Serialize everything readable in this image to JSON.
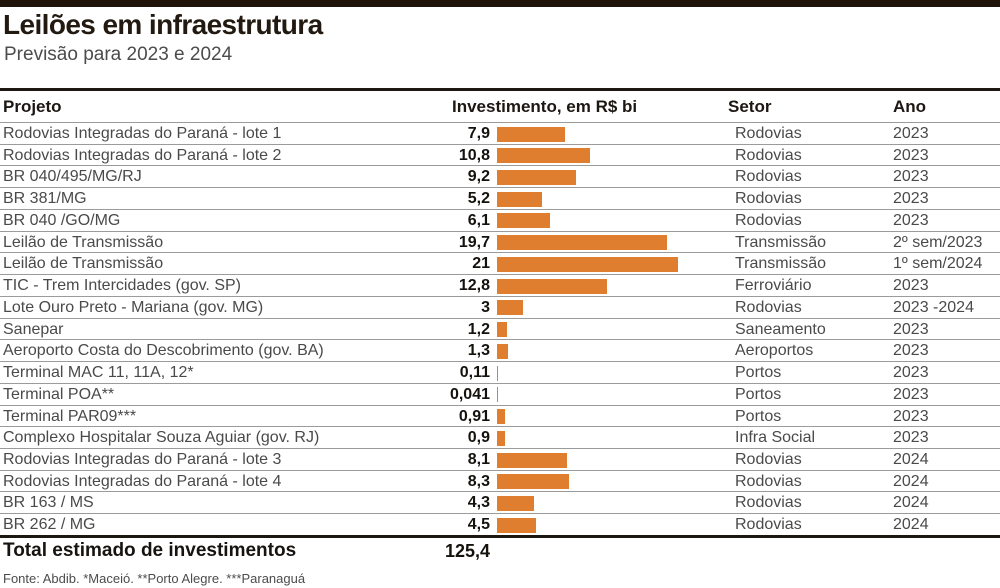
{
  "header": {
    "title": "Leilões em infraestrutura",
    "subtitle": "Previsão para 2023 e 2024"
  },
  "table": {
    "columns": {
      "project": "Projeto",
      "investment": "Investimento, em R$ bi",
      "sector": "Setor",
      "year": "Ano"
    },
    "rows": [
      {
        "project": "Rodovias Integradas do Paraná - lote 1",
        "value_label": "7,9",
        "value": 7.9,
        "sector": "Rodovias",
        "year": "2023"
      },
      {
        "project": "Rodovias Integradas do Paraná - lote 2",
        "value_label": "10,8",
        "value": 10.8,
        "sector": "Rodovias",
        "year": "2023"
      },
      {
        "project": "BR 040/495/MG/RJ",
        "value_label": "9,2",
        "value": 9.2,
        "sector": "Rodovias",
        "year": "2023"
      },
      {
        "project": "BR 381/MG",
        "value_label": "5,2",
        "value": 5.2,
        "sector": "Rodovias",
        "year": "2023"
      },
      {
        "project": "BR 040 /GO/MG",
        "value_label": "6,1",
        "value": 6.1,
        "sector": "Rodovias",
        "year": "2023"
      },
      {
        "project": "Leilão de Transmissão",
        "value_label": "19,7",
        "value": 19.7,
        "sector": "Transmissão",
        "year": "2º sem/2023"
      },
      {
        "project": "Leilão de Transmissão",
        "value_label": "21",
        "value": 21,
        "sector": "Transmissão",
        "year": "1º sem/2024"
      },
      {
        "project": "TIC - Trem Intercidades (gov. SP)",
        "value_label": "12,8",
        "value": 12.8,
        "sector": "Ferroviário",
        "year": "2023"
      },
      {
        "project": "Lote Ouro Preto - Mariana (gov. MG)",
        "value_label": "3",
        "value": 3,
        "sector": "Rodovias",
        "year": "2023 -2024"
      },
      {
        "project": "Sanepar",
        "value_label": "1,2",
        "value": 1.2,
        "sector": "Saneamento",
        "year": "2023"
      },
      {
        "project": "Aeroporto Costa do Descobrimento (gov. BA)",
        "value_label": "1,3",
        "value": 1.3,
        "sector": "Aeroportos",
        "year": "2023"
      },
      {
        "project": "Terminal MAC 11, 11A, 12*",
        "value_label": "0,11",
        "value": 0.11,
        "sector": "Portos",
        "year": "2023"
      },
      {
        "project": "Terminal POA**",
        "value_label": "0,041",
        "value": 0.041,
        "sector": "Portos",
        "year": "2023"
      },
      {
        "project": "Terminal PAR09***",
        "value_label": "0,91",
        "value": 0.91,
        "sector": "Portos",
        "year": "2023"
      },
      {
        "project": "Complexo Hospitalar Souza Aguiar (gov. RJ)",
        "value_label": "0,9",
        "value": 0.9,
        "sector": "Infra Social",
        "year": "2023"
      },
      {
        "project": "Rodovias Integradas do Paraná - lote 3",
        "value_label": "8,1",
        "value": 8.1,
        "sector": "Rodovias",
        "year": "2024"
      },
      {
        "project": "Rodovias Integradas do Paraná - lote 4",
        "value_label": "8,3",
        "value": 8.3,
        "sector": "Rodovias",
        "year": "2024"
      },
      {
        "project": "BR 163 / MS",
        "value_label": "4,3",
        "value": 4.3,
        "sector": "Rodovias",
        "year": "2024"
      },
      {
        "project": "BR 262 / MG",
        "value_label": "4,5",
        "value": 4.5,
        "sector": "Rodovias",
        "year": "2024"
      }
    ],
    "total": {
      "label": "Total estimado de investimentos",
      "value_label": "125,4",
      "value": 125.4
    }
  },
  "footer": {
    "source": "Fonte: Abdib. *Maceió. **Porto Alegre. ***Paranaguá"
  },
  "colors": {
    "bar": "#DE7E2E",
    "rule": "#1d1712",
    "separator": "#9b9b9b",
    "text": "#4a4a4a"
  },
  "chart_data": {
    "type": "bar",
    "orientation": "horizontal",
    "title": "Leilões em infraestrutura",
    "subtitle": "Previsão para 2023 e 2024",
    "xlabel": "Investimento, em R$ bi",
    "xlim": [
      0,
      21
    ],
    "grid": false,
    "legend": false,
    "bar_color": "#DE7E2E",
    "categories": [
      "Rodovias Integradas do Paraná - lote 1",
      "Rodovias Integradas do Paraná - lote 2",
      "BR 040/495/MG/RJ",
      "BR 381/MG",
      "BR 040 /GO/MG",
      "Leilão de Transmissão",
      "Leilão de Transmissão",
      "TIC - Trem Intercidades (gov. SP)",
      "Lote Ouro Preto - Mariana (gov. MG)",
      "Sanepar",
      "Aeroporto Costa do Descobrimento (gov. BA)",
      "Terminal MAC 11, 11A, 12*",
      "Terminal POA**",
      "Terminal PAR09***",
      "Complexo Hospitalar Souza Aguiar (gov. RJ)",
      "Rodovias Integradas do Paraná - lote 3",
      "Rodovias Integradas do Paraná - lote 4",
      "BR 163 / MS",
      "BR 262 / MG"
    ],
    "values": [
      7.9,
      10.8,
      9.2,
      5.2,
      6.1,
      19.7,
      21,
      12.8,
      3,
      1.2,
      1.3,
      0.11,
      0.041,
      0.91,
      0.9,
      8.1,
      8.3,
      4.3,
      4.5
    ],
    "sectors": [
      "Rodovias",
      "Rodovias",
      "Rodovias",
      "Rodovias",
      "Rodovias",
      "Transmissão",
      "Transmissão",
      "Ferroviário",
      "Rodovias",
      "Saneamento",
      "Aeroportos",
      "Portos",
      "Portos",
      "Portos",
      "Infra Social",
      "Rodovias",
      "Rodovias",
      "Rodovias",
      "Rodovias"
    ],
    "years": [
      "2023",
      "2023",
      "2023",
      "2023",
      "2023",
      "2º sem/2023",
      "1º sem/2024",
      "2023",
      "2023 -2024",
      "2023",
      "2023",
      "2023",
      "2023",
      "2023",
      "2023",
      "2024",
      "2024",
      "2024",
      "2024"
    ],
    "total": 125.4,
    "source": "Fonte: Abdib. *Maceió. **Porto Alegre. ***Paranaguá"
  }
}
